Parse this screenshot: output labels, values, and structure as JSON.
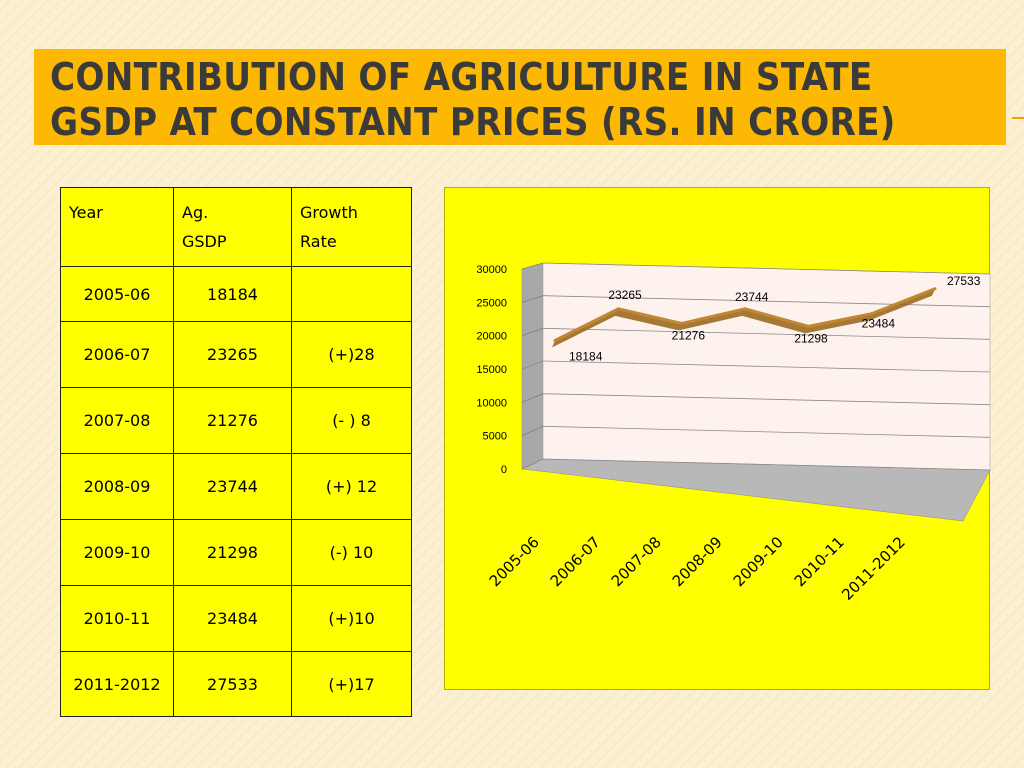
{
  "title": "Contribution of agriculture in state GSDP at constant prices (Rs. In crore)",
  "table": {
    "headers": [
      "Year",
      "Ag.\nGSDP",
      "Growth\nRate"
    ],
    "rows": [
      {
        "year": "2005-06",
        "gsdp": "18184",
        "growth": ""
      },
      {
        "year": "2006-07",
        "gsdp": "23265",
        "growth": "(+)28"
      },
      {
        "year": "2007-08",
        "gsdp": "21276",
        "growth": "(- ) 8"
      },
      {
        "year": "2008-09",
        "gsdp": "23744",
        "growth": "(+) 12"
      },
      {
        "year": "2009-10",
        "gsdp": "21298",
        "growth": "(-) 10"
      },
      {
        "year": "2010-11",
        "gsdp": "23484",
        "growth": "(+)10"
      },
      {
        "year": "2011-2012",
        "gsdp": "27533",
        "growth": "(+)17"
      }
    ]
  },
  "chart_data": {
    "type": "line",
    "categories": [
      "2005-06",
      "2006-07",
      "2007-08",
      "2008-09",
      "2009-10",
      "2010-11",
      "2011-2012"
    ],
    "values": [
      18184,
      23265,
      21276,
      23744,
      21298,
      23484,
      27533
    ],
    "yticks": [
      "0",
      "5000",
      "10000",
      "15000",
      "20000",
      "25000",
      "30000"
    ],
    "ylim": [
      0,
      30000
    ],
    "grid": true,
    "legend": "none",
    "style": "3d",
    "colors": {
      "line": "#c08830",
      "plot_wall": "#fdf2ee",
      "side_wall": "#a8a8a8",
      "background": "#ffff00"
    }
  }
}
